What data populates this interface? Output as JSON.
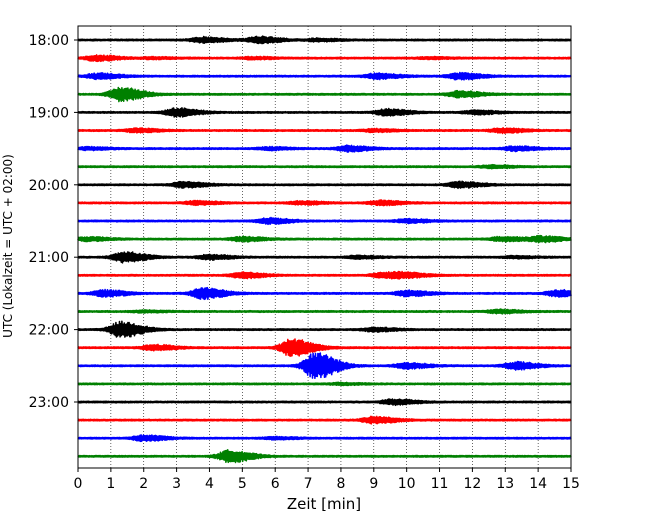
{
  "chart_data": {
    "type": "line",
    "title": "",
    "xlabel": "Zeit  [min]",
    "ylabel": "UTC (Lokalzeit = UTC + 02:00)",
    "xlim": [
      0,
      15
    ],
    "x_ticks": [
      "0",
      "1",
      "2",
      "3",
      "4",
      "5",
      "6",
      "7",
      "8",
      "9",
      "10",
      "11",
      "12",
      "13",
      "14",
      "15"
    ],
    "y_tick_labels": [
      "18:00",
      "19:00",
      "20:00",
      "21:00",
      "22:00",
      "23:00"
    ],
    "y_tick_rows": [
      0,
      4,
      8,
      12,
      16,
      20
    ],
    "row_start_utc": "18:00",
    "row_interval_minutes": 15,
    "grid": "vertical dotted",
    "colors": [
      "#000000",
      "#ff0000",
      "#0000ff",
      "#008000"
    ],
    "series": [
      {
        "start": "18:00",
        "color": "#000000",
        "events": [
          {
            "t": 3.8,
            "amp": 0.3
          },
          {
            "t": 5.5,
            "amp": 0.35
          },
          {
            "t": 7.3,
            "amp": 0.15
          }
        ]
      },
      {
        "start": "18:15",
        "color": "#ff0000",
        "events": [
          {
            "t": 0.55,
            "amp": 0.3
          },
          {
            "t": 2.3,
            "amp": 0.1
          },
          {
            "t": 5.3,
            "amp": 0.12
          },
          {
            "t": 10.7,
            "amp": 0.1
          }
        ]
      },
      {
        "start": "18:30",
        "color": "#0000ff",
        "events": [
          {
            "t": 0.6,
            "amp": 0.3
          },
          {
            "t": 9.1,
            "amp": 0.3
          },
          {
            "t": 11.6,
            "amp": 0.35
          }
        ]
      },
      {
        "start": "18:45",
        "color": "#008000",
        "events": [
          {
            "t": 1.3,
            "amp": 0.75
          },
          {
            "t": 11.6,
            "amp": 0.35
          }
        ]
      },
      {
        "start": "19:00",
        "color": "#000000",
        "events": [
          {
            "t": 3.0,
            "amp": 0.45
          },
          {
            "t": 9.4,
            "amp": 0.35
          },
          {
            "t": 12.1,
            "amp": 0.2
          }
        ]
      },
      {
        "start": "19:15",
        "color": "#ff0000",
        "events": [
          {
            "t": 1.8,
            "amp": 0.2
          },
          {
            "t": 9.0,
            "amp": 0.15
          },
          {
            "t": 12.9,
            "amp": 0.25
          }
        ]
      },
      {
        "start": "19:30",
        "color": "#0000ff",
        "events": [
          {
            "t": 0.3,
            "amp": 0.15
          },
          {
            "t": 5.8,
            "amp": 0.15
          },
          {
            "t": 8.2,
            "amp": 0.3
          },
          {
            "t": 13.3,
            "amp": 0.25
          }
        ]
      },
      {
        "start": "19:45",
        "color": "#008000",
        "events": [
          {
            "t": 12.6,
            "amp": 0.15
          }
        ]
      },
      {
        "start": "20:00",
        "color": "#000000",
        "events": [
          {
            "t": 3.2,
            "amp": 0.3
          },
          {
            "t": 11.6,
            "amp": 0.32
          }
        ]
      },
      {
        "start": "20:15",
        "color": "#ff0000",
        "events": [
          {
            "t": 3.6,
            "amp": 0.2
          },
          {
            "t": 6.8,
            "amp": 0.18
          },
          {
            "t": 9.2,
            "amp": 0.25
          }
        ]
      },
      {
        "start": "20:30",
        "color": "#0000ff",
        "events": [
          {
            "t": 5.8,
            "amp": 0.3
          },
          {
            "t": 10.0,
            "amp": 0.2
          }
        ]
      },
      {
        "start": "20:45",
        "color": "#008000",
        "events": [
          {
            "t": 0.3,
            "amp": 0.2
          },
          {
            "t": 5.0,
            "amp": 0.25
          },
          {
            "t": 12.9,
            "amp": 0.25
          },
          {
            "t": 14.1,
            "amp": 0.3
          }
        ]
      },
      {
        "start": "21:00",
        "color": "#000000",
        "events": [
          {
            "t": 1.4,
            "amp": 0.55
          },
          {
            "t": 4.0,
            "amp": 0.25
          },
          {
            "t": 8.5,
            "amp": 0.15
          },
          {
            "t": 13.3,
            "amp": 0.12
          }
        ]
      },
      {
        "start": "21:15",
        "color": "#ff0000",
        "events": [
          {
            "t": 5.0,
            "amp": 0.3
          },
          {
            "t": 9.3,
            "amp": 0.3
          },
          {
            "t": 10.0,
            "amp": 0.2
          }
        ]
      },
      {
        "start": "21:30",
        "color": "#0000ff",
        "events": [
          {
            "t": 0.8,
            "amp": 0.35
          },
          {
            "t": 3.8,
            "amp": 0.6
          },
          {
            "t": 10.0,
            "amp": 0.3
          },
          {
            "t": 14.6,
            "amp": 0.35
          }
        ]
      },
      {
        "start": "21:45",
        "color": "#008000",
        "events": [
          {
            "t": 2.0,
            "amp": 0.1
          },
          {
            "t": 12.8,
            "amp": 0.2
          }
        ]
      },
      {
        "start": "22:00",
        "color": "#000000",
        "events": [
          {
            "t": 1.3,
            "amp": 0.85
          },
          {
            "t": 9.0,
            "amp": 0.2
          }
        ]
      },
      {
        "start": "22:15",
        "color": "#ff0000",
        "events": [
          {
            "t": 2.3,
            "amp": 0.3
          },
          {
            "t": 6.5,
            "amp": 0.95
          }
        ]
      },
      {
        "start": "22:30",
        "color": "#0000ff",
        "events": [
          {
            "t": 7.2,
            "amp": 1.4
          },
          {
            "t": 10.0,
            "amp": 0.3
          },
          {
            "t": 13.3,
            "amp": 0.4
          }
        ]
      },
      {
        "start": "22:45",
        "color": "#008000",
        "events": [
          {
            "t": 8.0,
            "amp": 0.1
          }
        ]
      },
      {
        "start": "23:00",
        "color": "#000000",
        "events": [
          {
            "t": 9.6,
            "amp": 0.3
          }
        ]
      },
      {
        "start": "23:15",
        "color": "#ff0000",
        "events": [
          {
            "t": 9.0,
            "amp": 0.35
          }
        ]
      },
      {
        "start": "23:30",
        "color": "#0000ff",
        "events": [
          {
            "t": 2.0,
            "amp": 0.3
          },
          {
            "t": 6.0,
            "amp": 0.12
          }
        ]
      },
      {
        "start": "23:45",
        "color": "#008000",
        "events": [
          {
            "t": 4.6,
            "amp": 0.65
          }
        ]
      }
    ]
  }
}
